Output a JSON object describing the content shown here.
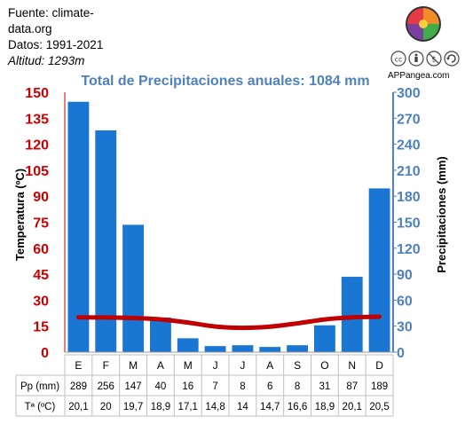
{
  "source": {
    "line1": "Fuente: climate-",
    "line2": "data.org",
    "line3": "Datos: 1991-2021",
    "altitude_label": "Altitud:",
    "altitude_value": "1293m"
  },
  "branding": {
    "site": "APPangea.com",
    "license_icons": [
      "cc-icon",
      "attribution-icon",
      "noncommercial-icon",
      "sharealike-icon"
    ]
  },
  "colors": {
    "bars": "#1976D2",
    "temperature_line": "#C00000",
    "temp_axis": "#CC0000",
    "precip_axis": "#4F81BD",
    "title": "#4F81BD"
  },
  "chart_data": {
    "type": "bar",
    "title": "Total de Precipitaciones anuales: 1084 mm",
    "categories": [
      "E",
      "F",
      "M",
      "A",
      "M",
      "J",
      "J",
      "A",
      "S",
      "O",
      "N",
      "D"
    ],
    "series": [
      {
        "name": "Pp (mm)",
        "type": "bar",
        "axis": "right",
        "values": [
          289,
          256,
          147,
          40,
          16,
          7,
          8,
          6,
          8,
          31,
          87,
          189
        ]
      },
      {
        "name": "Tª (ºC)",
        "type": "line",
        "axis": "left",
        "values": [
          20.1,
          20,
          19.7,
          18.9,
          17.1,
          14.8,
          14,
          14.7,
          16.6,
          18.9,
          20.1,
          20.5
        ]
      }
    ],
    "ylabel_left": "Temperatura (ºC)",
    "ylabel_right": "Precipitaciones (mm)",
    "ylim_left": [
      0,
      150
    ],
    "ylim_right": [
      0,
      300
    ],
    "yticks_left": [
      0,
      15,
      30,
      45,
      60,
      75,
      90,
      105,
      120,
      135,
      150
    ],
    "yticks_right": [
      0,
      30,
      60,
      90,
      120,
      150,
      180,
      210,
      240,
      270,
      300
    ],
    "grid": false,
    "table": {
      "rows": [
        {
          "label": "Pp (mm)",
          "cells": [
            "289",
            "256",
            "147",
            "40",
            "16",
            "7",
            "8",
            "6",
            "8",
            "31",
            "87",
            "189"
          ]
        },
        {
          "label": "Tª (ºC)",
          "cells": [
            "20,1",
            "20",
            "19,7",
            "18,9",
            "17,1",
            "14,8",
            "14",
            "14,7",
            "16,6",
            "18,9",
            "20,1",
            "20,5"
          ]
        }
      ]
    }
  }
}
